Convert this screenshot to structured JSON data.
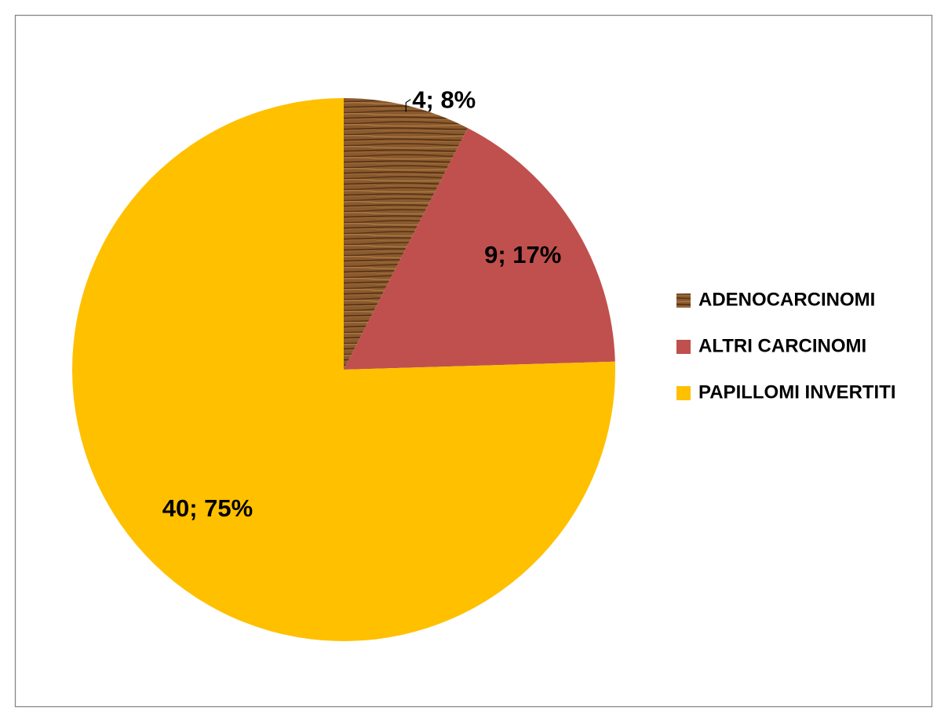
{
  "chart_data": {
    "type": "pie",
    "title": "",
    "start_angle_deg": 0,
    "direction": "clockwise",
    "legend_position": "right",
    "slices": [
      {
        "name": "ADENOCARCINOMI",
        "value": 4,
        "percent": 8,
        "label": "4; 8%",
        "color": "#8a5a2e",
        "fill_style": "wood-texture"
      },
      {
        "name": "ALTRI CARCINOMI",
        "value": 9,
        "percent": 17,
        "label": "9; 17%",
        "color": "#c0504d"
      },
      {
        "name": "PAPILLOMI INVERTITI",
        "value": 40,
        "percent": 75,
        "label": "40; 75%",
        "color": "#ffc000"
      }
    ]
  }
}
